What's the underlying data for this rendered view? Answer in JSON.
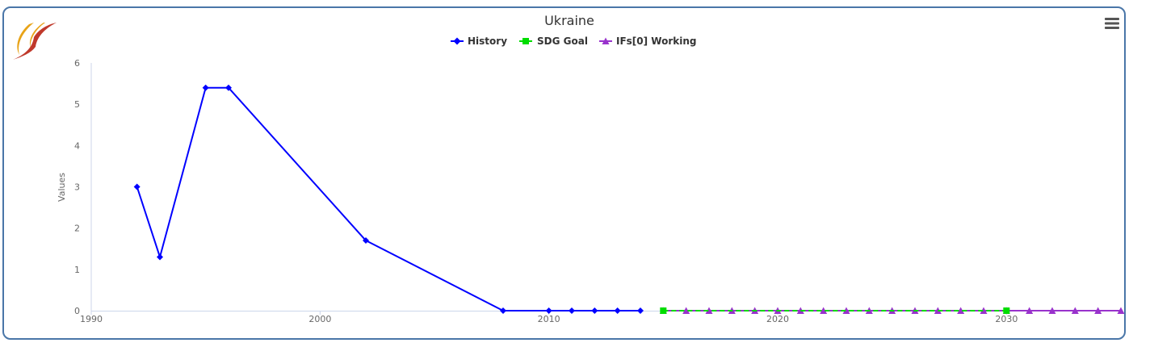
{
  "chart_data": {
    "type": "line",
    "title": "Ukraine",
    "xlabel": "",
    "ylabel": "Values",
    "xlim": [
      1990,
      2035
    ],
    "ylim": [
      0,
      6
    ],
    "xticks": [
      1990,
      2000,
      2010,
      2020,
      2030
    ],
    "yticks": [
      0,
      1,
      2,
      3,
      4,
      5,
      6
    ],
    "legend_position": "top-center",
    "grid": false,
    "series": [
      {
        "name": "History",
        "color": "#0000ff",
        "marker": "diamond",
        "points": [
          [
            1992,
            3.0
          ],
          [
            1993,
            1.3
          ],
          [
            1995,
            5.4
          ],
          [
            1996,
            5.4
          ],
          [
            2002,
            1.7
          ],
          [
            2008,
            0
          ],
          [
            2010,
            0
          ],
          [
            2011,
            0
          ],
          [
            2012,
            0
          ],
          [
            2013,
            0
          ],
          [
            2014,
            0
          ]
        ]
      },
      {
        "name": "SDG Goal",
        "color": "#00dd00",
        "marker": "square",
        "points": [
          [
            2015,
            0
          ],
          [
            2030,
            0
          ]
        ]
      },
      {
        "name": "IFs[0] Working",
        "color": "#9933cc",
        "marker": "triangle",
        "points": [
          [
            2015,
            0
          ],
          [
            2016,
            0
          ],
          [
            2017,
            0
          ],
          [
            2018,
            0
          ],
          [
            2019,
            0
          ],
          [
            2020,
            0
          ],
          [
            2021,
            0
          ],
          [
            2022,
            0
          ],
          [
            2023,
            0
          ],
          [
            2024,
            0
          ],
          [
            2025,
            0
          ],
          [
            2026,
            0
          ],
          [
            2027,
            0
          ],
          [
            2028,
            0
          ],
          [
            2029,
            0
          ],
          [
            2030,
            0
          ],
          [
            2031,
            0
          ],
          [
            2032,
            0
          ],
          [
            2033,
            0
          ],
          [
            2034,
            0
          ],
          [
            2035,
            0
          ]
        ]
      }
    ]
  },
  "toolbar": {
    "menu_icon": "hamburger-menu-icon"
  },
  "logo": {
    "icon": "flame-logo-icon",
    "colors": [
      "#e8a317",
      "#c0392b"
    ]
  }
}
